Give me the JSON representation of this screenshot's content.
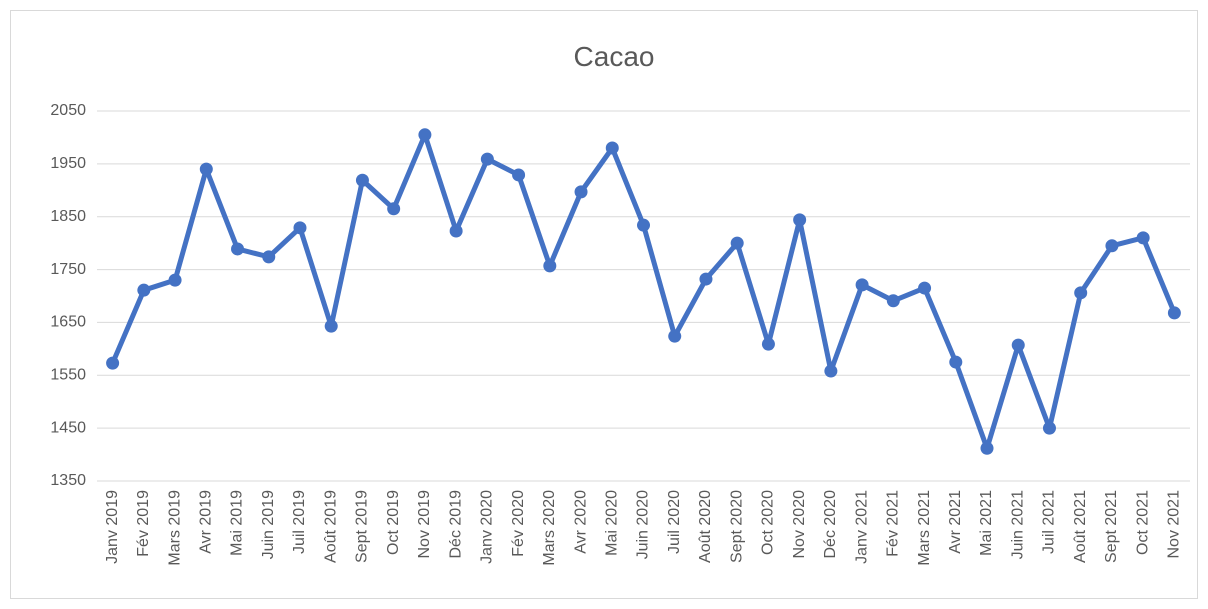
{
  "chart_data": {
    "type": "line",
    "title": "Cacao",
    "categories": [
      "Janv 2019",
      "Fév 2019",
      "Mars 2019",
      "Avr 2019",
      "Mai 2019",
      "Juin 2019",
      "Juil 2019",
      "Août 2019",
      "Sept 2019",
      "Oct 2019",
      "Nov 2019",
      "Déc 2019",
      "Janv 2020",
      "Fév 2020",
      "Mars 2020",
      "Avr 2020",
      "Mai 2020",
      "Juin 2020",
      "Juil 2020",
      "Août 2020",
      "Sept 2020",
      "Oct 2020",
      "Nov 2020",
      "Déc 2020",
      "Janv 2021",
      "Fév 2021",
      "Mars 2021",
      "Avr 2021",
      "Mai 2021",
      "Juin 2021",
      "Juil 2021",
      "Août 2021",
      "Sept 2021",
      "Oct 2021",
      "Nov 2021"
    ],
    "values": [
      1573,
      1711,
      1730,
      1940,
      1789,
      1774,
      1829,
      1643,
      1919,
      1865,
      2005,
      1823,
      1959,
      1929,
      1757,
      1897,
      1980,
      1834,
      1624,
      1732,
      1800,
      1609,
      1844,
      1558,
      1721,
      1691,
      1715,
      1575,
      1412,
      1607,
      1450,
      1706,
      1795,
      1810,
      1668
    ],
    "color": "#4472c4",
    "ylim": [
      1350,
      2050
    ],
    "yticks": [
      1350,
      1450,
      1550,
      1650,
      1750,
      1850,
      1950,
      2050
    ],
    "grid": true
  }
}
